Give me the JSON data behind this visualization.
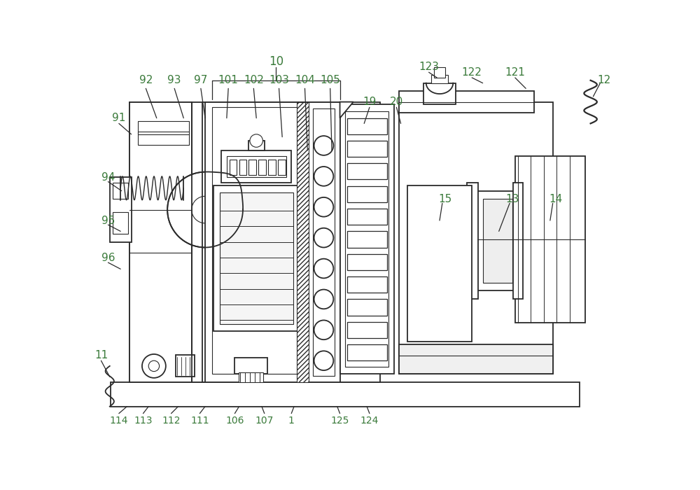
{
  "bg_color": "#ffffff",
  "line_color": "#2a2a2a",
  "label_color": "#3a7a3a",
  "fig_width": 10.0,
  "fig_height": 7.0,
  "lw_main": 1.3,
  "lw_thin": 0.8,
  "lw_leader": 0.9,
  "label_fs": 11,
  "label_fs_sm": 10
}
